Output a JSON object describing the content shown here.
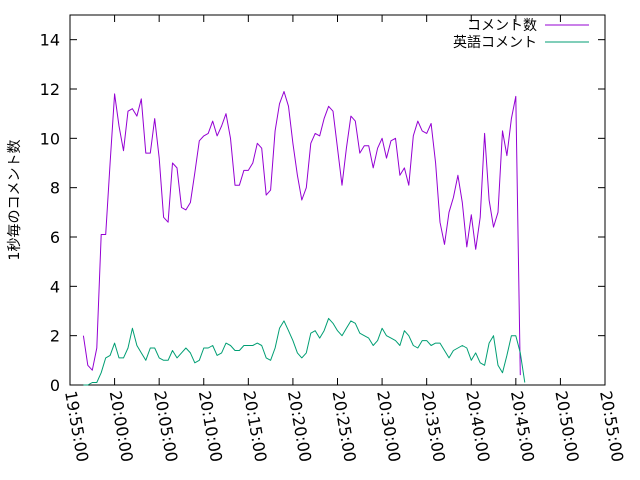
{
  "chart_data": {
    "type": "line",
    "ylabel": "1秒毎のコメント数",
    "xlabel": "",
    "ylim": [
      0,
      15
    ],
    "yticks": [
      0,
      2,
      4,
      6,
      8,
      10,
      12,
      14
    ],
    "xlim": [
      "19:55:00",
      "20:55:00"
    ],
    "xticks": [
      "19:55:00",
      "20:00:00",
      "20:05:00",
      "20:10:00",
      "20:15:00",
      "20:20:00",
      "20:25:00",
      "20:30:00",
      "20:35:00",
      "20:40:00",
      "20:45:00",
      "20:50:00",
      "20:55:00"
    ],
    "grid": false,
    "legend_position": "top-right",
    "series": [
      {
        "name": "コメント数",
        "color": "#9400d3",
        "points": [
          [
            "19:56:30",
            2.0
          ],
          [
            "19:57:00",
            0.8
          ],
          [
            "19:57:30",
            0.6
          ],
          [
            "19:58:00",
            1.5
          ],
          [
            "19:58:30",
            6.1
          ],
          [
            "19:59:00",
            6.1
          ],
          [
            "19:59:30",
            9.0
          ],
          [
            "20:00:00",
            11.8
          ],
          [
            "20:00:30",
            10.5
          ],
          [
            "20:01:00",
            9.5
          ],
          [
            "20:01:30",
            11.1
          ],
          [
            "20:02:00",
            11.2
          ],
          [
            "20:02:30",
            10.9
          ],
          [
            "20:03:00",
            11.6
          ],
          [
            "20:03:30",
            9.4
          ],
          [
            "20:04:00",
            9.4
          ],
          [
            "20:04:30",
            10.8
          ],
          [
            "20:05:00",
            9.2
          ],
          [
            "20:05:30",
            6.8
          ],
          [
            "20:06:00",
            6.6
          ],
          [
            "20:06:30",
            9.0
          ],
          [
            "20:07:00",
            8.8
          ],
          [
            "20:07:30",
            7.2
          ],
          [
            "20:08:00",
            7.1
          ],
          [
            "20:08:30",
            7.4
          ],
          [
            "20:09:00",
            8.6
          ],
          [
            "20:09:30",
            9.9
          ],
          [
            "20:10:00",
            10.1
          ],
          [
            "20:10:30",
            10.2
          ],
          [
            "20:11:00",
            10.7
          ],
          [
            "20:11:30",
            10.1
          ],
          [
            "20:12:00",
            10.5
          ],
          [
            "20:12:30",
            11.0
          ],
          [
            "20:13:00",
            10.0
          ],
          [
            "20:13:30",
            8.1
          ],
          [
            "20:14:00",
            8.1
          ],
          [
            "20:14:30",
            8.7
          ],
          [
            "20:15:00",
            8.7
          ],
          [
            "20:15:30",
            9.0
          ],
          [
            "20:16:00",
            9.8
          ],
          [
            "20:16:30",
            9.6
          ],
          [
            "20:17:00",
            7.7
          ],
          [
            "20:17:30",
            7.9
          ],
          [
            "20:18:00",
            10.3
          ],
          [
            "20:18:30",
            11.4
          ],
          [
            "20:19:00",
            11.9
          ],
          [
            "20:19:30",
            11.3
          ],
          [
            "20:20:00",
            9.8
          ],
          [
            "20:20:30",
            8.5
          ],
          [
            "20:21:00",
            7.5
          ],
          [
            "20:21:30",
            8.0
          ],
          [
            "20:22:00",
            9.8
          ],
          [
            "20:22:30",
            10.2
          ],
          [
            "20:23:00",
            10.1
          ],
          [
            "20:23:30",
            10.8
          ],
          [
            "20:24:00",
            11.3
          ],
          [
            "20:24:30",
            11.1
          ],
          [
            "20:25:00",
            9.6
          ],
          [
            "20:25:30",
            8.1
          ],
          [
            "20:26:00",
            9.6
          ],
          [
            "20:26:30",
            10.9
          ],
          [
            "20:27:00",
            10.7
          ],
          [
            "20:27:30",
            9.4
          ],
          [
            "20:28:00",
            9.7
          ],
          [
            "20:28:30",
            9.7
          ],
          [
            "20:29:00",
            8.8
          ],
          [
            "20:29:30",
            9.6
          ],
          [
            "20:30:00",
            10.0
          ],
          [
            "20:30:30",
            9.2
          ],
          [
            "20:31:00",
            9.9
          ],
          [
            "20:31:30",
            10.0
          ],
          [
            "20:32:00",
            8.5
          ],
          [
            "20:32:30",
            8.8
          ],
          [
            "20:33:00",
            8.1
          ],
          [
            "20:33:30",
            10.1
          ],
          [
            "20:34:00",
            10.7
          ],
          [
            "20:34:30",
            10.3
          ],
          [
            "20:35:00",
            10.2
          ],
          [
            "20:35:30",
            10.6
          ],
          [
            "20:36:00",
            9.0
          ],
          [
            "20:36:30",
            6.6
          ],
          [
            "20:37:00",
            5.7
          ],
          [
            "20:37:30",
            7.0
          ],
          [
            "20:38:00",
            7.6
          ],
          [
            "20:38:30",
            8.5
          ],
          [
            "20:39:00",
            7.4
          ],
          [
            "20:39:30",
            5.6
          ],
          [
            "20:40:00",
            6.9
          ],
          [
            "20:40:30",
            5.5
          ],
          [
            "20:41:00",
            6.8
          ],
          [
            "20:41:30",
            10.2
          ],
          [
            "20:42:00",
            7.5
          ],
          [
            "20:42:30",
            6.4
          ],
          [
            "20:43:00",
            7.0
          ],
          [
            "20:43:30",
            10.3
          ],
          [
            "20:44:00",
            9.3
          ],
          [
            "20:44:30",
            10.8
          ],
          [
            "20:45:00",
            11.7
          ],
          [
            "20:45:30",
            0.4
          ]
        ]
      },
      {
        "name": "英語コメント",
        "color": "#009e73",
        "points": [
          [
            "19:56:30",
            0.0
          ],
          [
            "19:57:00",
            0.0
          ],
          [
            "19:57:30",
            0.1
          ],
          [
            "19:58:00",
            0.1
          ],
          [
            "19:58:30",
            0.5
          ],
          [
            "19:59:00",
            1.1
          ],
          [
            "19:59:30",
            1.2
          ],
          [
            "20:00:00",
            1.7
          ],
          [
            "20:00:30",
            1.1
          ],
          [
            "20:01:00",
            1.1
          ],
          [
            "20:01:30",
            1.5
          ],
          [
            "20:02:00",
            2.3
          ],
          [
            "20:02:30",
            1.6
          ],
          [
            "20:03:00",
            1.3
          ],
          [
            "20:03:30",
            1.0
          ],
          [
            "20:04:00",
            1.5
          ],
          [
            "20:04:30",
            1.5
          ],
          [
            "20:05:00",
            1.1
          ],
          [
            "20:05:30",
            1.0
          ],
          [
            "20:06:00",
            1.0
          ],
          [
            "20:06:30",
            1.4
          ],
          [
            "20:07:00",
            1.1
          ],
          [
            "20:07:30",
            1.3
          ],
          [
            "20:08:00",
            1.5
          ],
          [
            "20:08:30",
            1.3
          ],
          [
            "20:09:00",
            0.9
          ],
          [
            "20:09:30",
            1.0
          ],
          [
            "20:10:00",
            1.5
          ],
          [
            "20:10:30",
            1.5
          ],
          [
            "20:11:00",
            1.6
          ],
          [
            "20:11:30",
            1.2
          ],
          [
            "20:12:00",
            1.3
          ],
          [
            "20:12:30",
            1.7
          ],
          [
            "20:13:00",
            1.6
          ],
          [
            "20:13:30",
            1.4
          ],
          [
            "20:14:00",
            1.4
          ],
          [
            "20:14:30",
            1.6
          ],
          [
            "20:15:00",
            1.6
          ],
          [
            "20:15:30",
            1.6
          ],
          [
            "20:16:00",
            1.7
          ],
          [
            "20:16:30",
            1.6
          ],
          [
            "20:17:00",
            1.1
          ],
          [
            "20:17:30",
            1.0
          ],
          [
            "20:18:00",
            1.5
          ],
          [
            "20:18:30",
            2.3
          ],
          [
            "20:19:00",
            2.6
          ],
          [
            "20:19:30",
            2.2
          ],
          [
            "20:20:00",
            1.8
          ],
          [
            "20:20:30",
            1.3
          ],
          [
            "20:21:00",
            1.1
          ],
          [
            "20:21:30",
            1.3
          ],
          [
            "20:22:00",
            2.1
          ],
          [
            "20:22:30",
            2.2
          ],
          [
            "20:23:00",
            1.9
          ],
          [
            "20:23:30",
            2.2
          ],
          [
            "20:24:00",
            2.7
          ],
          [
            "20:24:30",
            2.5
          ],
          [
            "20:25:00",
            2.2
          ],
          [
            "20:25:30",
            2.0
          ],
          [
            "20:26:00",
            2.3
          ],
          [
            "20:26:30",
            2.6
          ],
          [
            "20:27:00",
            2.5
          ],
          [
            "20:27:30",
            2.1
          ],
          [
            "20:28:00",
            2.0
          ],
          [
            "20:28:30",
            1.9
          ],
          [
            "20:29:00",
            1.6
          ],
          [
            "20:29:30",
            1.8
          ],
          [
            "20:30:00",
            2.3
          ],
          [
            "20:30:30",
            2.0
          ],
          [
            "20:31:00",
            1.9
          ],
          [
            "20:31:30",
            1.8
          ],
          [
            "20:32:00",
            1.6
          ],
          [
            "20:32:30",
            2.2
          ],
          [
            "20:33:00",
            2.0
          ],
          [
            "20:33:30",
            1.6
          ],
          [
            "20:34:00",
            1.5
          ],
          [
            "20:34:30",
            1.8
          ],
          [
            "20:35:00",
            1.8
          ],
          [
            "20:35:30",
            1.6
          ],
          [
            "20:36:00",
            1.7
          ],
          [
            "20:36:30",
            1.7
          ],
          [
            "20:37:00",
            1.4
          ],
          [
            "20:37:30",
            1.1
          ],
          [
            "20:38:00",
            1.4
          ],
          [
            "20:38:30",
            1.5
          ],
          [
            "20:39:00",
            1.6
          ],
          [
            "20:39:30",
            1.5
          ],
          [
            "20:40:00",
            1.0
          ],
          [
            "20:40:30",
            1.3
          ],
          [
            "20:41:00",
            0.9
          ],
          [
            "20:41:30",
            0.8
          ],
          [
            "20:42:00",
            1.7
          ],
          [
            "20:42:30",
            2.0
          ],
          [
            "20:43:00",
            0.8
          ],
          [
            "20:43:30",
            0.5
          ],
          [
            "20:44:00",
            1.2
          ],
          [
            "20:44:30",
            2.0
          ],
          [
            "20:45:00",
            2.0
          ],
          [
            "20:45:30",
            1.3
          ],
          [
            "20:46:00",
            0.1
          ]
        ]
      }
    ]
  }
}
